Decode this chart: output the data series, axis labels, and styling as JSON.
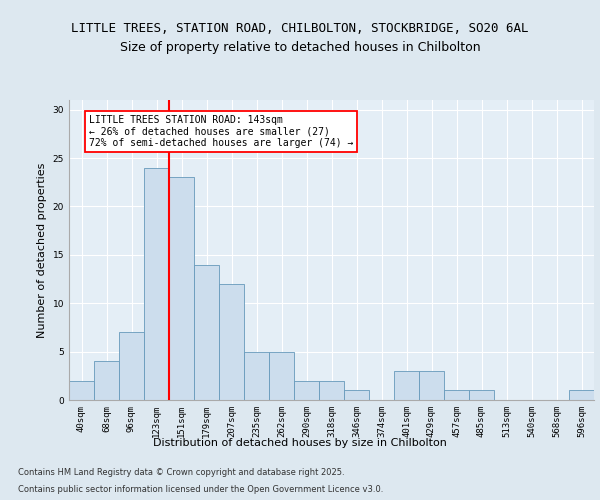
{
  "title_line1": "LITTLE TREES, STATION ROAD, CHILBOLTON, STOCKBRIDGE, SO20 6AL",
  "title_line2": "Size of property relative to detached houses in Chilbolton",
  "xlabel": "Distribution of detached houses by size in Chilbolton",
  "ylabel": "Number of detached properties",
  "footer_line1": "Contains HM Land Registry data © Crown copyright and database right 2025.",
  "footer_line2": "Contains public sector information licensed under the Open Government Licence v3.0.",
  "bin_labels": [
    "40sqm",
    "68sqm",
    "96sqm",
    "123sqm",
    "151sqm",
    "179sqm",
    "207sqm",
    "235sqm",
    "262sqm",
    "290sqm",
    "318sqm",
    "346sqm",
    "374sqm",
    "401sqm",
    "429sqm",
    "457sqm",
    "485sqm",
    "513sqm",
    "540sqm",
    "568sqm",
    "596sqm"
  ],
  "bar_values": [
    2,
    4,
    7,
    24,
    23,
    14,
    12,
    5,
    5,
    2,
    2,
    1,
    0,
    3,
    3,
    1,
    1,
    0,
    0,
    0,
    1
  ],
  "bar_color": "#ccdded",
  "bar_edge_color": "#6699bb",
  "vline_x_index": 3.5,
  "vline_color": "red",
  "annotation_text": "LITTLE TREES STATION ROAD: 143sqm\n← 26% of detached houses are smaller (27)\n72% of semi-detached houses are larger (74) →",
  "annotation_box_color": "white",
  "annotation_box_edge": "red",
  "ylim": [
    0,
    31
  ],
  "yticks": [
    0,
    5,
    10,
    15,
    20,
    25,
    30
  ],
  "bg_color": "#dde8f0",
  "plot_bg_color": "#e4eef6",
  "grid_color": "white",
  "title_fontsize": 9,
  "subtitle_fontsize": 9,
  "axis_label_fontsize": 8,
  "tick_fontsize": 6.5,
  "ylabel_fontsize": 8,
  "footer_fontsize": 6,
  "annot_fontsize": 7
}
